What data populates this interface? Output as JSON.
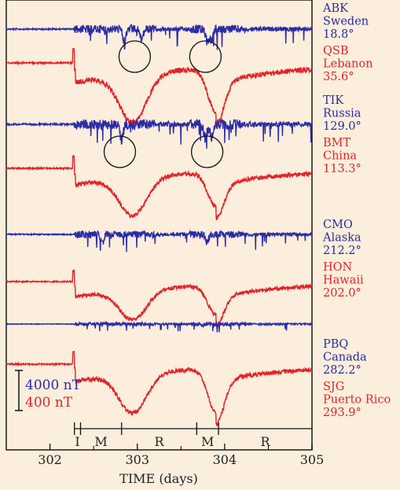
{
  "chart_data": {
    "type": "line",
    "title": "",
    "xlabel": "TIME (days)",
    "ylabel": "",
    "xlim": [
      301.5,
      305
    ],
    "x_ticks": [
      "302",
      "303",
      "304",
      "305"
    ],
    "scale_bar": {
      "blue_label": "4000 nT",
      "red_label": "400 nT"
    },
    "colors": {
      "blue": "#2b2ba6",
      "red": "#e0232a",
      "background": "#fbeedc"
    },
    "storm_onset_day": 302.28,
    "phases": [
      {
        "label": "I",
        "start": 302.28,
        "end": 302.35
      },
      {
        "label": "M",
        "start": 302.35,
        "end": 302.82
      },
      {
        "label": "R",
        "start": 302.82,
        "end": 303.68
      },
      {
        "label": "M",
        "start": 303.68,
        "end": 303.93
      },
      {
        "label": "R",
        "start": 303.93,
        "end": 305.0
      }
    ],
    "series": [
      {
        "code": "ABK",
        "place": "Sweden",
        "angle": "18.8°",
        "color": "blue",
        "kind": "auroral",
        "dips": [
          [
            302.85,
            0.5
          ],
          [
            303.05,
            0.45
          ],
          [
            303.8,
            0.55
          ],
          [
            303.85,
            0.5
          ]
        ],
        "circles": [
          302.97,
          303.78
        ]
      },
      {
        "code": "QSB",
        "place": "Lebanon",
        "angle": "35.6°",
        "color": "red",
        "kind": "storm",
        "main1": 1.0,
        "main2": 0.85
      },
      {
        "code": "TIK",
        "place": "Russia",
        "angle": "129.0°",
        "color": "blue",
        "kind": "auroral",
        "dips": [
          [
            302.82,
            0.55
          ],
          [
            303.78,
            0.5
          ],
          [
            303.85,
            0.5
          ]
        ],
        "circles": [
          302.8,
          303.8
        ]
      },
      {
        "code": "BMT",
        "place": "China",
        "angle": "113.3°",
        "color": "red",
        "kind": "storm",
        "main1": 0.95,
        "main2": 0.8
      },
      {
        "code": "CMO",
        "place": "Alaska",
        "angle": "212.2°",
        "color": "blue",
        "kind": "auroral",
        "dips": [
          [
            302.6,
            0.45
          ],
          [
            303.8,
            0.35
          ]
        ],
        "circles": []
      },
      {
        "code": "HON",
        "place": "Hawaii",
        "angle": "202.0°",
        "color": "red",
        "kind": "storm",
        "main1": 0.8,
        "main2": 0.75
      },
      {
        "code": "PBQ",
        "place": "Canada",
        "angle": "282.2°",
        "color": "blue",
        "kind": "auroral",
        "dips": [
          [
            303.75,
            0.15
          ]
        ],
        "circles": []
      },
      {
        "code": "SJG",
        "place": "Puerto Rico",
        "angle": "293.9°",
        "color": "red",
        "kind": "storm",
        "main1": 0.95,
        "main2": 1.0
      }
    ]
  }
}
